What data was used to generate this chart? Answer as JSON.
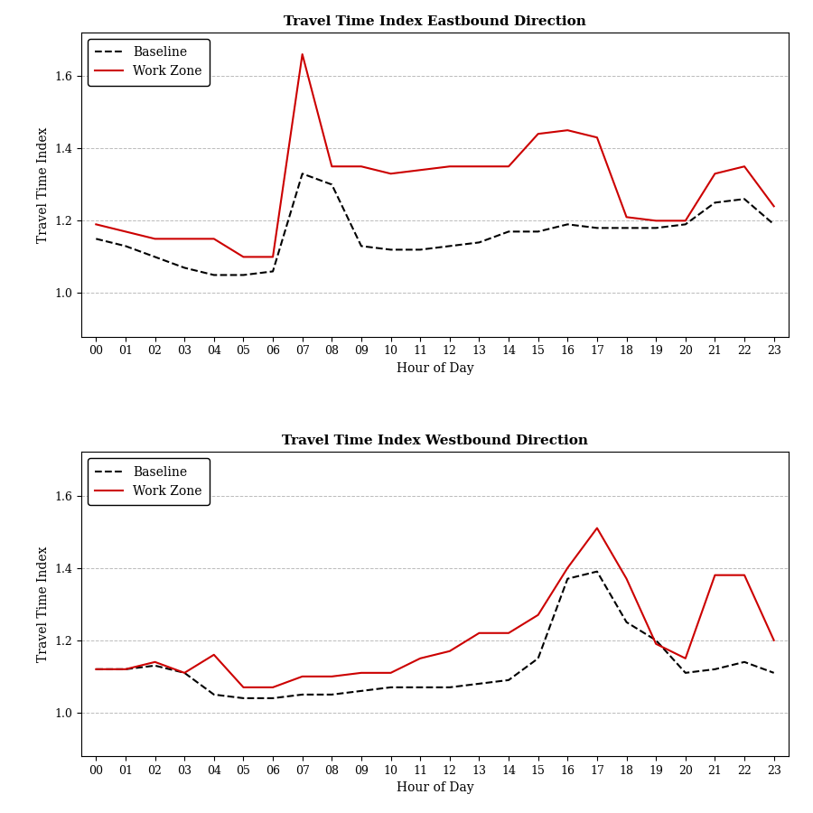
{
  "hours": [
    0,
    1,
    2,
    3,
    4,
    5,
    6,
    7,
    8,
    9,
    10,
    11,
    12,
    13,
    14,
    15,
    16,
    17,
    18,
    19,
    20,
    21,
    22,
    23
  ],
  "hour_labels": [
    "00",
    "01",
    "02",
    "03",
    "04",
    "05",
    "06",
    "07",
    "08",
    "09",
    "10",
    "11",
    "12",
    "13",
    "14",
    "15",
    "16",
    "17",
    "18",
    "19",
    "20",
    "21",
    "22",
    "23"
  ],
  "eb_baseline": [
    1.15,
    1.13,
    1.1,
    1.07,
    1.05,
    1.05,
    1.06,
    1.33,
    1.3,
    1.13,
    1.12,
    1.12,
    1.13,
    1.14,
    1.17,
    1.17,
    1.19,
    1.18,
    1.18,
    1.18,
    1.19,
    1.25,
    1.26,
    1.19
  ],
  "eb_workzone": [
    1.19,
    1.17,
    1.15,
    1.15,
    1.15,
    1.1,
    1.1,
    1.66,
    1.35,
    1.35,
    1.33,
    1.34,
    1.35,
    1.35,
    1.35,
    1.44,
    1.45,
    1.43,
    1.21,
    1.2,
    1.2,
    1.33,
    1.35,
    1.24
  ],
  "wb_baseline": [
    1.12,
    1.12,
    1.13,
    1.11,
    1.05,
    1.04,
    1.04,
    1.05,
    1.05,
    1.06,
    1.07,
    1.07,
    1.07,
    1.08,
    1.09,
    1.15,
    1.37,
    1.39,
    1.25,
    1.2,
    1.11,
    1.12,
    1.14,
    1.11
  ],
  "wb_workzone": [
    1.12,
    1.12,
    1.14,
    1.11,
    1.16,
    1.07,
    1.07,
    1.1,
    1.1,
    1.11,
    1.11,
    1.15,
    1.17,
    1.22,
    1.22,
    1.27,
    1.4,
    1.51,
    1.37,
    1.19,
    1.15,
    1.38,
    1.38,
    1.2
  ],
  "baseline_color": "#000000",
  "baseline_linestyle": "--",
  "baseline_linewidth": 1.5,
  "workzone_color": "#cc0000",
  "workzone_linestyle": "-",
  "workzone_linewidth": 1.5,
  "title_eb": "Travel Time Index Eastbound Direction",
  "title_wb": "Travel Time Index Westbound Direction",
  "xlabel": "Hour of Day",
  "ylabel": "Travel Time Index",
  "ylim": [
    0.88,
    1.72
  ],
  "yticks": [
    1.0,
    1.2,
    1.4,
    1.6
  ],
  "title_fontsize": 11,
  "label_fontsize": 10,
  "tick_fontsize": 9,
  "legend_fontsize": 10,
  "grid_color": "#aaaaaa",
  "grid_linestyle": "--",
  "grid_linewidth": 0.7,
  "grid_alpha": 0.8,
  "bg_color": "#ffffff",
  "plot_bg_color": "#ffffff",
  "legend_baseline": "Baseline",
  "legend_workzone": "Work Zone"
}
